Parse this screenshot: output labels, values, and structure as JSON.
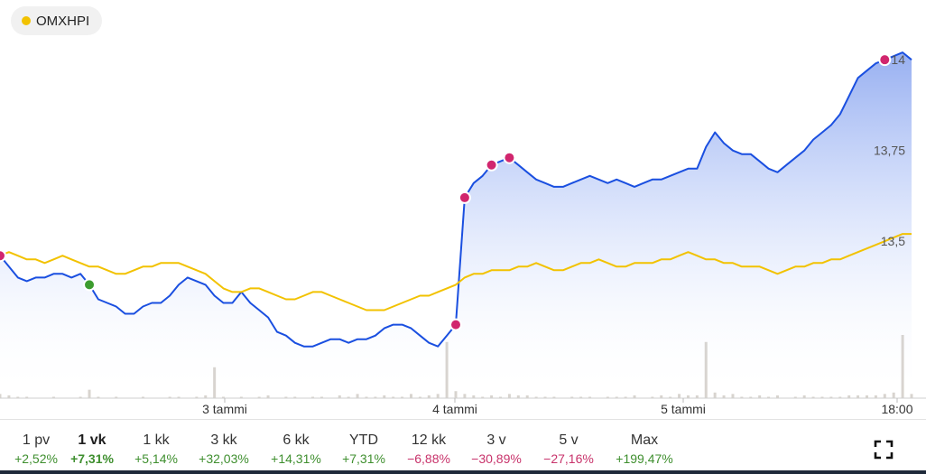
{
  "legend": {
    "label": "OMXHPI",
    "color": "#f2c200"
  },
  "ranges": [
    {
      "label": "1 pv",
      "change": "+2,52%",
      "dir": "pos",
      "active": false
    },
    {
      "label": "1 vk",
      "change": "+7,31%",
      "dir": "pos",
      "active": true
    },
    {
      "label": "1 kk",
      "change": "+5,14%",
      "dir": "pos",
      "active": false
    },
    {
      "label": "3 kk",
      "change": "+32,03%",
      "dir": "pos",
      "active": false
    },
    {
      "label": "6 kk",
      "change": "+14,31%",
      "dir": "pos",
      "active": false
    },
    {
      "label": "YTD",
      "change": "+7,31%",
      "dir": "pos",
      "active": false
    },
    {
      "label": "12 kk",
      "change": "−6,88%",
      "dir": "neg",
      "active": false
    },
    {
      "label": "3 v",
      "change": "−30,89%",
      "dir": "neg",
      "active": false
    },
    {
      "label": "5 v",
      "change": "−27,16%",
      "dir": "neg",
      "active": false
    },
    {
      "label": "Max",
      "change": "+199,47%",
      "dir": "pos",
      "active": false
    }
  ],
  "chart_data": {
    "type": "line",
    "x_tick_labels": [
      "3 tammi",
      "4 tammi",
      "5 tammi",
      "18:00"
    ],
    "y_tick_labels": [
      "13,5",
      "13,75",
      "14"
    ],
    "y_ticks": [
      13.5,
      13.75,
      14
    ],
    "ylim": [
      13.07,
      14.09
    ],
    "grid": false,
    "series": [
      {
        "name": "",
        "color": "#1a4fe0",
        "fill": true,
        "values": [
          13.46,
          13.43,
          13.4,
          13.39,
          13.4,
          13.4,
          13.41,
          13.41,
          13.4,
          13.41,
          13.38,
          13.34,
          13.33,
          13.32,
          13.3,
          13.3,
          13.32,
          13.33,
          13.33,
          13.35,
          13.38,
          13.4,
          13.39,
          13.38,
          13.35,
          13.33,
          13.33,
          13.36,
          13.33,
          13.31,
          13.29,
          13.25,
          13.24,
          13.22,
          13.21,
          13.21,
          13.22,
          13.23,
          13.23,
          13.22,
          13.23,
          13.23,
          13.24,
          13.26,
          13.27,
          13.27,
          13.26,
          13.24,
          13.22,
          13.21,
          13.24,
          13.27,
          13.62,
          13.66,
          13.68,
          13.71,
          13.72,
          13.73,
          13.71,
          13.69,
          13.67,
          13.66,
          13.65,
          13.65,
          13.66,
          13.67,
          13.68,
          13.67,
          13.66,
          13.67,
          13.66,
          13.65,
          13.66,
          13.67,
          13.67,
          13.68,
          13.69,
          13.7,
          13.7,
          13.76,
          13.8,
          13.77,
          13.75,
          13.74,
          13.74,
          13.72,
          13.7,
          13.69,
          13.71,
          13.73,
          13.75,
          13.78,
          13.8,
          13.82,
          13.85,
          13.9,
          13.95,
          13.97,
          13.99,
          14.0,
          14.01,
          14.02,
          14.0
        ]
      },
      {
        "name": "OMXHPI",
        "color": "#f2c200",
        "fill": false,
        "values": [
          13.46,
          13.47,
          13.46,
          13.45,
          13.45,
          13.44,
          13.45,
          13.46,
          13.45,
          13.44,
          13.43,
          13.43,
          13.42,
          13.41,
          13.41,
          13.42,
          13.43,
          13.43,
          13.44,
          13.44,
          13.44,
          13.43,
          13.42,
          13.41,
          13.39,
          13.37,
          13.36,
          13.36,
          13.37,
          13.37,
          13.36,
          13.35,
          13.34,
          13.34,
          13.35,
          13.36,
          13.36,
          13.35,
          13.34,
          13.33,
          13.32,
          13.31,
          13.31,
          13.31,
          13.32,
          13.33,
          13.34,
          13.35,
          13.35,
          13.36,
          13.37,
          13.38,
          13.4,
          13.41,
          13.41,
          13.42,
          13.42,
          13.42,
          13.43,
          13.43,
          13.44,
          13.43,
          13.42,
          13.42,
          13.43,
          13.44,
          13.44,
          13.45,
          13.44,
          13.43,
          13.43,
          13.44,
          13.44,
          13.44,
          13.45,
          13.45,
          13.46,
          13.47,
          13.46,
          13.45,
          13.45,
          13.44,
          13.44,
          13.43,
          13.43,
          13.43,
          13.42,
          13.41,
          13.42,
          13.43,
          13.43,
          13.44,
          13.44,
          13.45,
          13.45,
          13.46,
          13.47,
          13.48,
          13.49,
          13.5,
          13.51,
          13.52,
          13.52
        ]
      }
    ],
    "markers": [
      {
        "index": 0,
        "series": 0,
        "color": "#d1266e"
      },
      {
        "index": 10,
        "series": 0,
        "color": "#3c9c2e"
      },
      {
        "index": 51,
        "series": 0,
        "color": "#d1266e"
      },
      {
        "index": 52,
        "series": 0,
        "color": "#d1266e"
      },
      {
        "index": 55,
        "series": 0,
        "color": "#d1266e"
      },
      {
        "index": 57,
        "series": 0,
        "color": "#d1266e"
      },
      {
        "index": 99,
        "series": 0,
        "color": "#d1266e"
      }
    ],
    "volume": [
      3,
      2,
      1,
      1,
      0,
      0,
      1,
      0,
      0,
      1,
      6,
      1,
      0,
      1,
      0,
      0,
      1,
      0,
      0,
      1,
      1,
      0,
      1,
      2,
      22,
      1,
      0,
      1,
      0,
      1,
      2,
      0,
      1,
      1,
      0,
      1,
      1,
      0,
      2,
      1,
      3,
      1,
      1,
      2,
      1,
      1,
      3,
      1,
      2,
      3,
      40,
      5,
      3,
      2,
      1,
      2,
      1,
      3,
      2,
      2,
      1,
      1,
      1,
      0,
      1,
      1,
      1,
      0,
      1,
      1,
      1,
      2,
      0,
      1,
      2,
      1,
      3,
      2,
      2,
      40,
      4,
      2,
      3,
      1,
      1,
      2,
      1,
      2,
      0,
      1,
      2,
      1,
      1,
      1,
      1,
      2,
      2,
      2,
      2,
      3,
      4,
      45,
      3
    ]
  }
}
